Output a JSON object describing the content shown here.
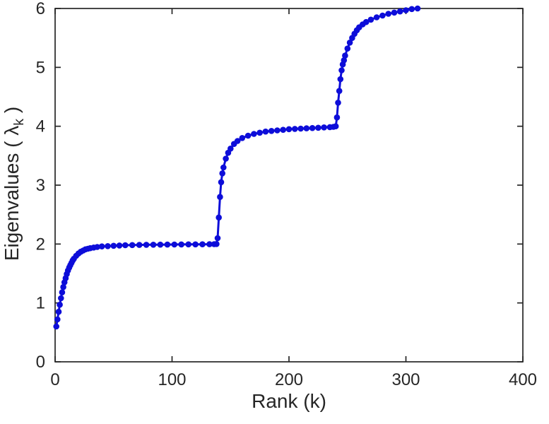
{
  "figure": {
    "background_color": "#ffffff",
    "axis_color": "#262626",
    "tick_label_color": "#262626"
  },
  "chart_data": {
    "type": "scatter",
    "title": "",
    "xlabel": "Rank (k)",
    "ylabel": "Eigenvalues ( λ_k )",
    "ylabel_parts": {
      "prefix": "Eigenvalues ( λ",
      "sub": "k",
      "suffix": " )"
    },
    "xlim": [
      0,
      400
    ],
    "ylim": [
      0,
      6
    ],
    "xticks": [
      "0",
      "100",
      "200",
      "300",
      "400"
    ],
    "yticks": [
      "0",
      "1",
      "2",
      "3",
      "4",
      "5",
      "6"
    ],
    "grid": false,
    "legend": null,
    "marker": {
      "shape": "circle",
      "color": "#0d0dd9",
      "radius_px": 4.3
    },
    "line_color": "#0d0dd9",
    "points": [
      [
        1,
        0.6
      ],
      [
        2,
        0.72
      ],
      [
        3,
        0.85
      ],
      [
        4,
        0.97
      ],
      [
        5,
        1.08
      ],
      [
        6,
        1.18
      ],
      [
        7,
        1.27
      ],
      [
        8,
        1.35
      ],
      [
        9,
        1.42
      ],
      [
        10,
        1.49
      ],
      [
        11,
        1.55
      ],
      [
        12,
        1.6
      ],
      [
        13,
        1.64
      ],
      [
        14,
        1.68
      ],
      [
        15,
        1.72
      ],
      [
        16,
        1.75
      ],
      [
        18,
        1.8
      ],
      [
        20,
        1.84
      ],
      [
        22,
        1.87
      ],
      [
        24,
        1.89
      ],
      [
        26,
        1.91
      ],
      [
        28,
        1.92
      ],
      [
        30,
        1.93
      ],
      [
        33,
        1.94
      ],
      [
        36,
        1.95
      ],
      [
        40,
        1.96
      ],
      [
        45,
        1.965
      ],
      [
        50,
        1.97
      ],
      [
        55,
        1.975
      ],
      [
        60,
        1.98
      ],
      [
        66,
        1.982
      ],
      [
        72,
        1.985
      ],
      [
        78,
        1.987
      ],
      [
        84,
        1.989
      ],
      [
        90,
        1.99
      ],
      [
        96,
        1.991
      ],
      [
        102,
        1.992
      ],
      [
        108,
        1.993
      ],
      [
        114,
        1.994
      ],
      [
        120,
        1.995
      ],
      [
        126,
        1.996
      ],
      [
        132,
        1.997
      ],
      [
        136,
        1.998
      ],
      [
        138,
        2.0
      ],
      [
        139,
        2.1
      ],
      [
        140,
        2.45
      ],
      [
        141,
        2.8
      ],
      [
        142,
        3.05
      ],
      [
        143,
        3.2
      ],
      [
        144,
        3.3
      ],
      [
        146,
        3.45
      ],
      [
        148,
        3.55
      ],
      [
        150,
        3.62
      ],
      [
        153,
        3.7
      ],
      [
        156,
        3.75
      ],
      [
        160,
        3.8
      ],
      [
        165,
        3.84
      ],
      [
        170,
        3.87
      ],
      [
        175,
        3.89
      ],
      [
        180,
        3.91
      ],
      [
        185,
        3.92
      ],
      [
        190,
        3.93
      ],
      [
        195,
        3.94
      ],
      [
        200,
        3.95
      ],
      [
        205,
        3.955
      ],
      [
        210,
        3.96
      ],
      [
        215,
        3.965
      ],
      [
        220,
        3.97
      ],
      [
        225,
        3.975
      ],
      [
        230,
        3.98
      ],
      [
        235,
        3.985
      ],
      [
        238,
        3.99
      ],
      [
        240,
        4.0
      ],
      [
        241,
        4.15
      ],
      [
        242,
        4.4
      ],
      [
        243,
        4.6
      ],
      [
        244,
        4.8
      ],
      [
        245,
        4.95
      ],
      [
        246,
        5.05
      ],
      [
        247,
        5.12
      ],
      [
        248,
        5.2
      ],
      [
        250,
        5.32
      ],
      [
        252,
        5.42
      ],
      [
        254,
        5.5
      ],
      [
        256,
        5.57
      ],
      [
        258,
        5.63
      ],
      [
        260,
        5.68
      ],
      [
        263,
        5.73
      ],
      [
        266,
        5.77
      ],
      [
        270,
        5.81
      ],
      [
        275,
        5.85
      ],
      [
        280,
        5.88
      ],
      [
        285,
        5.91
      ],
      [
        290,
        5.93
      ],
      [
        295,
        5.95
      ],
      [
        300,
        5.97
      ],
      [
        305,
        5.99
      ],
      [
        310,
        6.0
      ]
    ]
  }
}
